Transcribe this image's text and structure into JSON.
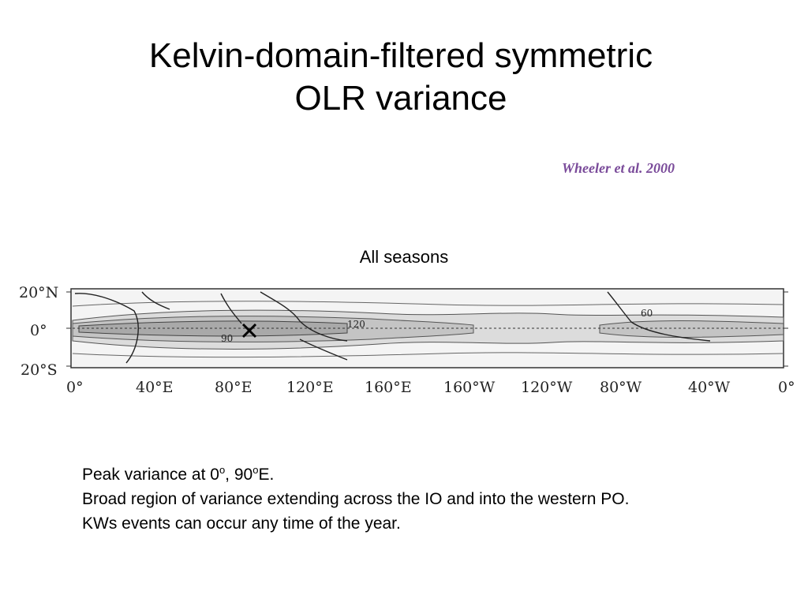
{
  "slide": {
    "title_line1": "Kelvin-domain-filtered symmetric",
    "title_line2": "OLR variance",
    "citation": "Wheeler et al. 2000",
    "season": "All seasons"
  },
  "map": {
    "lat_labels": [
      "20°N",
      "0°",
      "20°S"
    ],
    "lon_labels": [
      "0°",
      "40°E",
      "80°E",
      "120°E",
      "160°E",
      "160°W",
      "120°W",
      "80°W",
      "40°W",
      "0°"
    ],
    "contour_labels": [
      "90",
      "120",
      "60"
    ],
    "peak_marker": "×",
    "peak_location": "0°, 90°E"
  },
  "notes": {
    "line1_a": "Peak variance at 0",
    "line1_sup1": "o",
    "line1_b": ", 90",
    "line1_sup2": "o",
    "line1_c": "E.",
    "line2": "Broad region of variance extending across the IO and into the western PO.",
    "line3": "KWs events can occur any time of the year."
  }
}
